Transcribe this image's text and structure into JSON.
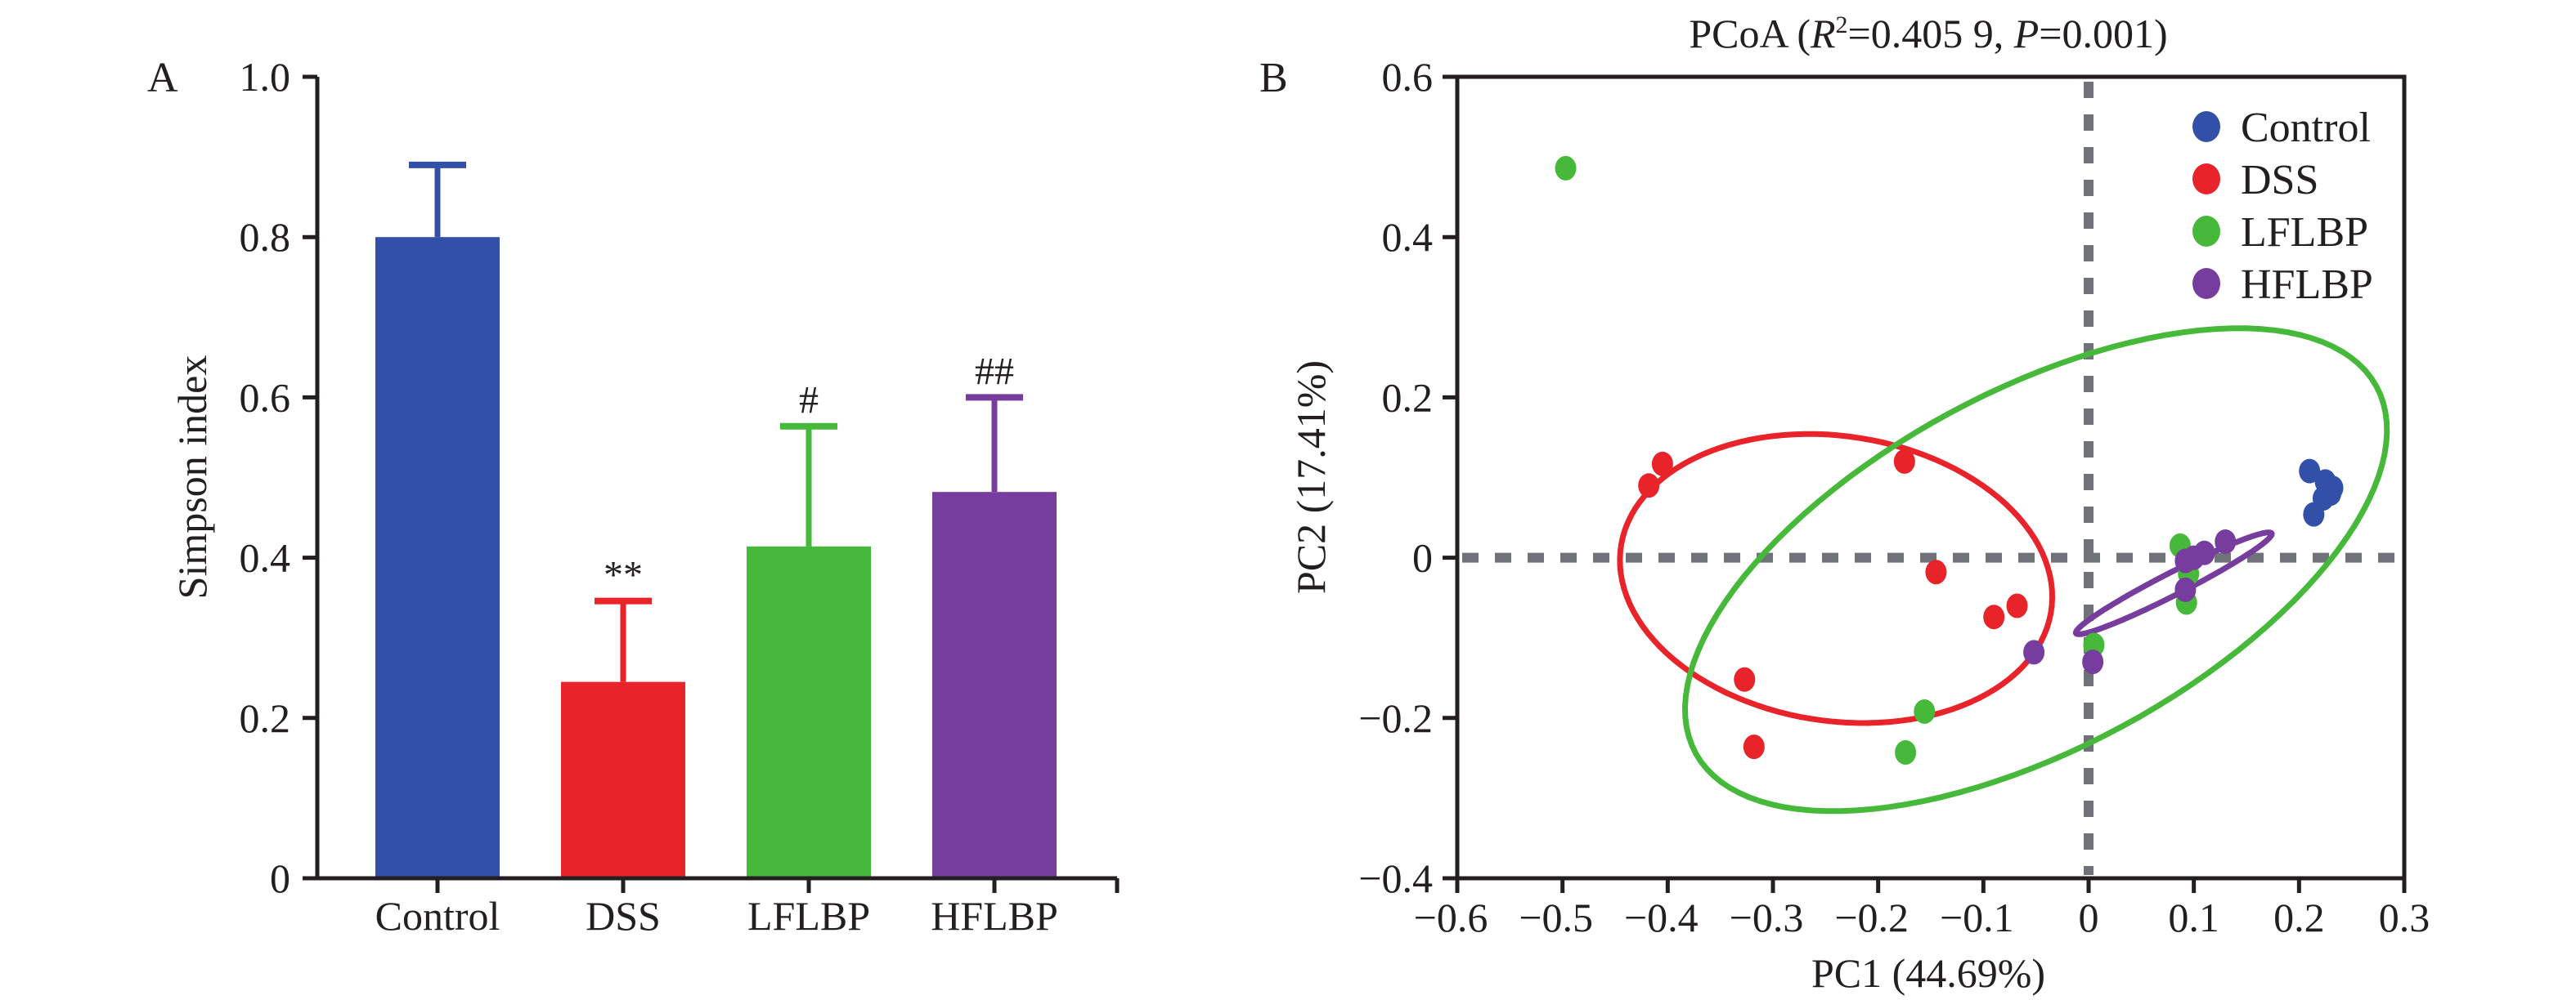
{
  "chart_data": [
    {
      "panel": "A",
      "type": "bar",
      "title": "",
      "xlabel": "",
      "ylabel": "Simpson index",
      "ylim": [
        0,
        1.0
      ],
      "yticks": [
        "0",
        "0.2",
        "0.4",
        "0.6",
        "0.8",
        "1.0"
      ],
      "ytick_values": [
        0,
        0.2,
        0.4,
        0.6,
        0.8,
        1.0
      ],
      "categories": [
        "Control",
        "DSS",
        "LFLBP",
        "HFLBP"
      ],
      "values": [
        0.8,
        0.245,
        0.414,
        0.482
      ],
      "error_upper": [
        0.89,
        0.346,
        0.564,
        0.6
      ],
      "annotations": [
        "",
        "**",
        "#",
        "##"
      ],
      "colors": [
        "#3350a8",
        "#e8232a",
        "#46b83a",
        "#763c9e"
      ],
      "grid": false
    },
    {
      "panel": "B",
      "type": "scatter",
      "title": "PCoA (R²=0.405 9, P=0.001)",
      "title_parts": {
        "prefix": "PCoA (",
        "r": "R",
        "sup": "2",
        "r_value": "=0.405 9, ",
        "p": "P",
        "p_value": "=0.001)"
      },
      "xlabel": "PC1 (44.69%)",
      "ylabel": "PC2 (17.41%)",
      "xlim": [
        -0.6,
        0.3
      ],
      "ylim": [
        -0.4,
        0.6
      ],
      "xticks": [
        "−0.6",
        "−0.5",
        "−0.4",
        "−0.3",
        "−0.2",
        "−0.1",
        "0",
        "0.1",
        "0.2",
        "0.3"
      ],
      "xtick_values": [
        -0.6,
        -0.5,
        -0.4,
        -0.3,
        -0.2,
        -0.1,
        0,
        0.1,
        0.2,
        0.3
      ],
      "yticks": [
        "−0.4",
        "−0.2",
        "0",
        "0.2",
        "0.4",
        "0.6"
      ],
      "ytick_values": [
        -0.4,
        -0.2,
        0,
        0.2,
        0.4,
        0.6
      ],
      "reference_lines": {
        "x": 0,
        "y": 0,
        "style": "dashed"
      },
      "legend_position": "top-right",
      "grid": false,
      "series": [
        {
          "name": "Control",
          "color": "#3350a8",
          "points": [
            [
              0.21,
              0.108
            ],
            [
              0.232,
              0.087
            ],
            [
              0.214,
              0.054
            ],
            [
              0.223,
              0.074
            ],
            [
              0.225,
              0.095
            ],
            [
              0.23,
              0.08
            ]
          ]
        },
        {
          "name": "DSS",
          "color": "#e8232a",
          "points": [
            [
              -0.405,
              0.117
            ],
            [
              -0.418,
              0.09
            ],
            [
              -0.175,
              0.12
            ],
            [
              -0.145,
              -0.018
            ],
            [
              -0.068,
              -0.06
            ],
            [
              -0.09,
              -0.074
            ],
            [
              -0.327,
              -0.152
            ],
            [
              -0.318,
              -0.236
            ]
          ],
          "ellipse": {
            "cx": -0.24,
            "cy": -0.026,
            "rx": 0.21,
            "ry": 0.175,
            "angle_deg": -22
          }
        },
        {
          "name": "LFLBP",
          "color": "#46b83a",
          "points": [
            [
              -0.497,
              0.486
            ],
            [
              -0.156,
              -0.192
            ],
            [
              -0.174,
              -0.243
            ],
            [
              0.087,
              0.015
            ],
            [
              0.095,
              -0.02
            ],
            [
              0.093,
              -0.056
            ],
            [
              0.005,
              -0.109
            ]
          ],
          "ellipse": {
            "cx": -0.05,
            "cy": -0.015,
            "rx": 0.4,
            "ry": 0.205,
            "angle_deg": 40
          }
        },
        {
          "name": "HFLBP",
          "color": "#763c9e",
          "points": [
            [
              -0.052,
              -0.118
            ],
            [
              0.004,
              -0.13
            ],
            [
              0.092,
              -0.004
            ],
            [
              0.11,
              0.006
            ],
            [
              0.13,
              0.02
            ],
            [
              0.092,
              -0.04
            ],
            [
              0.1,
              0.0
            ]
          ],
          "ellipse": {
            "cx": 0.081,
            "cy": -0.032,
            "rx": 0.112,
            "ry": 0.013,
            "angle_deg": 34
          }
        }
      ]
    }
  ],
  "labels": {
    "panel_a": "A",
    "panel_b": "B"
  }
}
